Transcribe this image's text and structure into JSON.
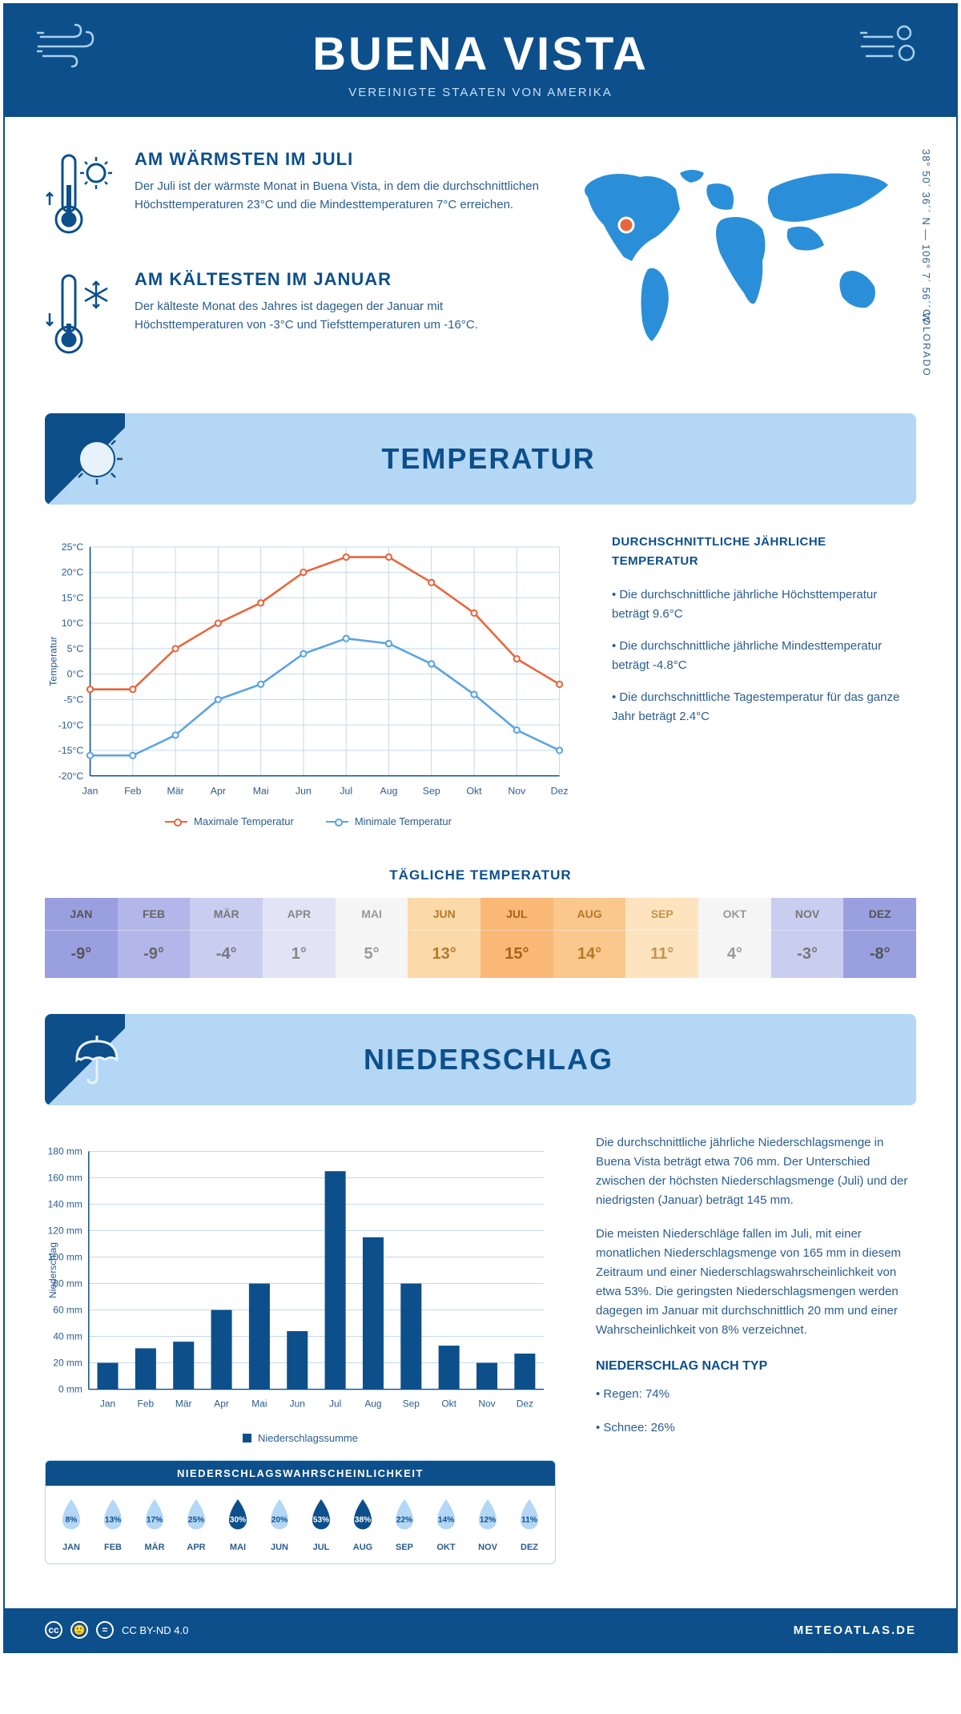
{
  "header": {
    "city": "BUENA VISTA",
    "country": "VEREINIGTE STAATEN VON AMERIKA"
  },
  "coords": "38° 50´ 36´´ N — 106° 7´ 56´´ W",
  "region": "COLORADO",
  "fact_warm": {
    "title": "AM WÄRMSTEN IM JULI",
    "text": "Der Juli ist der wärmste Monat in Buena Vista, in dem die durchschnittlichen Höchsttemperaturen 23°C und die Mindesttemperaturen 7°C erreichen."
  },
  "fact_cold": {
    "title": "AM KÄLTESTEN IM JANUAR",
    "text": "Der kälteste Monat des Jahres ist dagegen der Januar mit Höchsttemperaturen von -3°C und Tiefsttemperaturen um -16°C."
  },
  "section_temp": "TEMPERATUR",
  "section_precip": "NIEDERSCHLAG",
  "temp_chart": {
    "type": "line",
    "months": [
      "Jan",
      "Feb",
      "Mär",
      "Apr",
      "Mai",
      "Jun",
      "Jul",
      "Aug",
      "Sep",
      "Okt",
      "Nov",
      "Dez"
    ],
    "max_series": [
      -3,
      -3,
      5,
      10,
      14,
      20,
      23,
      23,
      18,
      12,
      3,
      -2
    ],
    "min_series": [
      -16,
      -16,
      -12,
      -5,
      -2,
      4,
      7,
      6,
      2,
      -4,
      -11,
      -15
    ],
    "ylim": [
      -20,
      25
    ],
    "ytick_step": 5,
    "ylabel": "Temperatur",
    "max_color": "#e8663c",
    "min_color": "#5ba3e0",
    "grid_color": "#c5d9ec",
    "axis_color": "#0d4f8b",
    "legend_max": "Maximale Temperatur",
    "legend_min": "Minimale Temperatur",
    "font_size": 12
  },
  "temp_side": {
    "title": "DURCHSCHNITTLICHE JÄHRLICHE TEMPERATUR",
    "p1": "• Die durchschnittliche jährliche Höchsttemperatur beträgt 9.6°C",
    "p2": "• Die durchschnittliche jährliche Mindesttemperatur beträgt -4.8°C",
    "p3": "• Die durchschnittliche Tagestemperatur für das ganze Jahr beträgt 2.4°C"
  },
  "daily": {
    "title": "TÄGLICHE TEMPERATUR",
    "months": [
      "JAN",
      "FEB",
      "MÄR",
      "APR",
      "MAI",
      "JUN",
      "JUL",
      "AUG",
      "SEP",
      "OKT",
      "NOV",
      "DEZ"
    ],
    "values": [
      "-9°",
      "-9°",
      "-4°",
      "1°",
      "5°",
      "13°",
      "15°",
      "14°",
      "11°",
      "4°",
      "-3°",
      "-8°"
    ],
    "colors": [
      "#9a9fe0",
      "#b2b6e8",
      "#c9cdf0",
      "#e2e4f6",
      "#f5f5f5",
      "#fcd9a8",
      "#f9b876",
      "#fac78c",
      "#fde3be",
      "#f5f5f5",
      "#c9cdf0",
      "#9a9fe0"
    ],
    "text_colors": [
      "#555",
      "#666",
      "#777",
      "#888",
      "#999",
      "#b57a2a",
      "#a8631a",
      "#b57a2a",
      "#c4934f",
      "#999",
      "#777",
      "#555"
    ]
  },
  "precip_chart": {
    "type": "bar",
    "months": [
      "Jan",
      "Feb",
      "Mär",
      "Apr",
      "Mai",
      "Jun",
      "Jul",
      "Aug",
      "Sep",
      "Okt",
      "Nov",
      "Dez"
    ],
    "values": [
      20,
      31,
      36,
      60,
      80,
      44,
      165,
      115,
      80,
      33,
      20,
      27
    ],
    "ylim": [
      0,
      180
    ],
    "ytick_step": 20,
    "ylabel": "Niederschlag",
    "bar_color": "#0d4f8b",
    "grid_color": "#c5d9ec",
    "legend": "Niederschlagssumme",
    "bar_width": 0.55,
    "font_size": 12
  },
  "precip_side": {
    "p1": "Die durchschnittliche jährliche Niederschlagsmenge in Buena Vista beträgt etwa 706 mm. Der Unterschied zwischen der höchsten Niederschlagsmenge (Juli) und der niedrigsten (Januar) beträgt 145 mm.",
    "p2": "Die meisten Niederschläge fallen im Juli, mit einer monatlichen Niederschlagsmenge von 165 mm in diesem Zeitraum und einer Niederschlagswahrscheinlichkeit von etwa 53%. Die geringsten Niederschlagsmengen werden dagegen im Januar mit durchschnittlich 20 mm und einer Wahrscheinlichkeit von 8% verzeichnet.",
    "type_title": "NIEDERSCHLAG NACH TYP",
    "type1": "• Regen: 74%",
    "type2": "• Schnee: 26%"
  },
  "prob": {
    "title": "NIEDERSCHLAGSWAHRSCHEINLICHKEIT",
    "months": [
      "JAN",
      "FEB",
      "MÄR",
      "APR",
      "MAI",
      "JUN",
      "JUL",
      "AUG",
      "SEP",
      "OKT",
      "NOV",
      "DEZ"
    ],
    "values": [
      "8%",
      "13%",
      "17%",
      "25%",
      "30%",
      "20%",
      "53%",
      "38%",
      "22%",
      "14%",
      "12%",
      "11%"
    ],
    "pct": [
      8,
      13,
      17,
      25,
      30,
      20,
      53,
      38,
      22,
      14,
      12,
      11
    ],
    "dark_color": "#0d4f8b",
    "light_color": "#b3d7f5"
  },
  "footer": {
    "license": "CC BY-ND 4.0",
    "site": "METEOATLAS.DE"
  }
}
